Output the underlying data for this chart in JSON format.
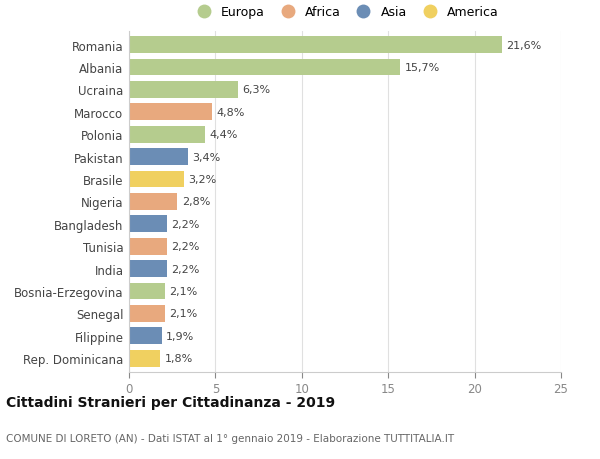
{
  "countries": [
    "Romania",
    "Albania",
    "Ucraina",
    "Marocco",
    "Polonia",
    "Pakistan",
    "Brasile",
    "Nigeria",
    "Bangladesh",
    "Tunisia",
    "India",
    "Bosnia-Erzegovina",
    "Senegal",
    "Filippine",
    "Rep. Dominicana"
  ],
  "values": [
    21.6,
    15.7,
    6.3,
    4.8,
    4.4,
    3.4,
    3.2,
    2.8,
    2.2,
    2.2,
    2.2,
    2.1,
    2.1,
    1.9,
    1.8
  ],
  "labels": [
    "21,6%",
    "15,7%",
    "6,3%",
    "4,8%",
    "4,4%",
    "3,4%",
    "3,2%",
    "2,8%",
    "2,2%",
    "2,2%",
    "2,2%",
    "2,1%",
    "2,1%",
    "1,9%",
    "1,8%"
  ],
  "regions": [
    "Europa",
    "Europa",
    "Europa",
    "Africa",
    "Europa",
    "Asia",
    "America",
    "Africa",
    "Asia",
    "Africa",
    "Asia",
    "Europa",
    "Africa",
    "Asia",
    "America"
  ],
  "colors": {
    "Europa": "#b5cc8e",
    "Africa": "#e8a97e",
    "Asia": "#6b8db5",
    "America": "#f0d060"
  },
  "legend_order": [
    "Europa",
    "Africa",
    "Asia",
    "America"
  ],
  "title": "Cittadini Stranieri per Cittadinanza - 2019",
  "subtitle": "COMUNE DI LORETO (AN) - Dati ISTAT al 1° gennaio 2019 - Elaborazione TUTTITALIA.IT",
  "xlim": [
    0,
    25
  ],
  "xticks": [
    0,
    5,
    10,
    15,
    20,
    25
  ],
  "background_color": "#ffffff",
  "grid_color": "#e0e0e0"
}
